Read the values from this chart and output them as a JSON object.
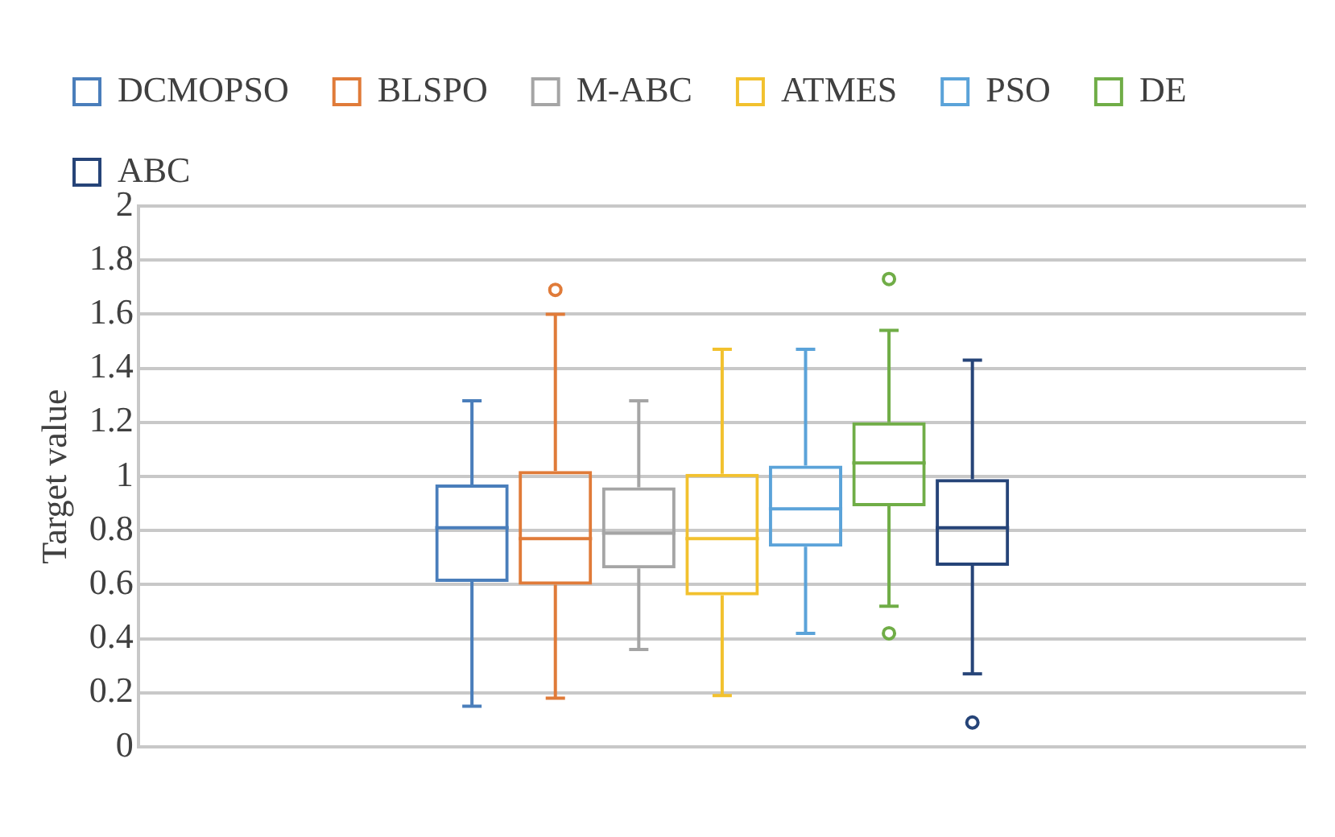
{
  "chart_data": {
    "type": "box",
    "categories": [
      null
    ],
    "ylabel": "Target value",
    "ylim": [
      0,
      2
    ],
    "yticks": [
      0,
      0.2,
      0.4,
      0.6,
      0.8,
      1,
      1.2,
      1.4,
      1.6,
      1.8,
      2
    ],
    "grid": "y",
    "legend": "top",
    "series": [
      {
        "name": "DCMOPSO",
        "color": "#4a7ebb",
        "boxes": [
          {
            "low": 0.15,
            "q1": 0.61,
            "median": 0.81,
            "q3": 0.97,
            "high": 1.28
          }
        ]
      },
      {
        "name": "BLSPO",
        "color": "#e07b39",
        "boxes": [
          {
            "low": 0.18,
            "q1": 0.6,
            "median": 0.77,
            "q3": 1.02,
            "high": 1.6,
            "outliers": [
              1.69
            ]
          }
        ]
      },
      {
        "name": "M-ABC",
        "color": "#a5a5a5",
        "boxes": [
          {
            "low": 0.36,
            "q1": 0.66,
            "median": 0.79,
            "q3": 0.96,
            "high": 1.28
          }
        ]
      },
      {
        "name": "ATMES",
        "color": "#f2c12e",
        "boxes": [
          {
            "low": 0.19,
            "q1": 0.56,
            "median": 0.77,
            "q3": 1.01,
            "high": 1.47
          }
        ]
      },
      {
        "name": "PSO",
        "color": "#5ba3d9",
        "boxes": [
          {
            "low": 0.42,
            "q1": 0.74,
            "median": 0.88,
            "q3": 1.04,
            "high": 1.47
          }
        ]
      },
      {
        "name": "DE",
        "color": "#70ad47",
        "boxes": [
          {
            "low": 0.52,
            "q1": 0.89,
            "median": 1.05,
            "q3": 1.2,
            "high": 1.54,
            "outliers": [
              0.42,
              1.73
            ]
          }
        ]
      },
      {
        "name": "ABC",
        "color": "#264478",
        "boxes": [
          {
            "low": 0.27,
            "q1": 0.67,
            "median": 0.81,
            "q3": 0.99,
            "high": 1.43,
            "outliers": [
              0.09
            ]
          }
        ]
      }
    ]
  }
}
